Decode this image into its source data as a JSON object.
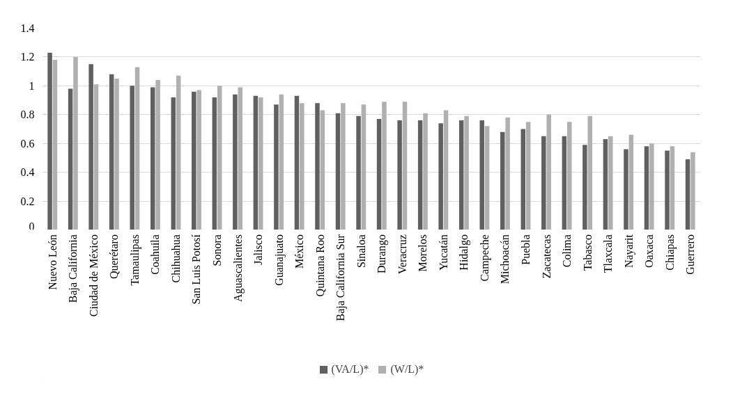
{
  "chart_data": {
    "type": "bar",
    "categories": [
      "Nuevo León",
      "Baja California",
      "Ciudad de México",
      "Querétaro",
      "Tamaulipas",
      "Coahuila",
      "Chihuahua",
      "San Luis Potosí",
      "Sonora",
      "Aguascalientes",
      "Jalisco",
      "Guanajuato",
      "México",
      "Quintana Roo",
      "Baja California Sur",
      "Sinaloa",
      "Durango",
      "Veracruz",
      "Morelos",
      "Yucatán",
      "Hidalgo",
      "Campeche",
      "Michoacán",
      "Puebla",
      "Zacatecas",
      "Colima",
      "Tabasco",
      "Tlaxcala",
      "Nayarit",
      "Oaxaca",
      "Chiapas",
      "Guerrero"
    ],
    "series": [
      {
        "name": "(VA/L)*",
        "color": "#606060",
        "values": [
          1.23,
          0.98,
          1.15,
          1.08,
          1.0,
          0.99,
          0.92,
          0.96,
          0.92,
          0.94,
          0.93,
          0.87,
          0.93,
          0.88,
          0.81,
          0.79,
          0.77,
          0.76,
          0.76,
          0.74,
          0.76,
          0.76,
          0.68,
          0.7,
          0.65,
          0.65,
          0.59,
          0.63,
          0.56,
          0.58,
          0.55,
          0.49
        ]
      },
      {
        "name": "(W/L)*",
        "color": "#b0b0b0",
        "values": [
          1.18,
          1.2,
          1.01,
          1.05,
          1.13,
          1.04,
          1.07,
          0.97,
          1.0,
          0.99,
          0.92,
          0.94,
          0.88,
          0.83,
          0.88,
          0.87,
          0.89,
          0.89,
          0.81,
          0.83,
          0.79,
          0.72,
          0.78,
          0.75,
          0.8,
          0.75,
          0.79,
          0.65,
          0.66,
          0.6,
          0.58,
          0.54
        ]
      }
    ],
    "ylim": [
      0,
      1.4
    ],
    "yticks": [
      0,
      {
        "value": 0.2,
        "label": "0.2"
      },
      {
        "value": 0.4,
        "label": "0.4"
      },
      {
        "value": 0.6,
        "label": "0.6"
      },
      {
        "value": 0.8,
        "label": "0.8"
      },
      1,
      {
        "value": 1.2,
        "label": "1.2"
      },
      {
        "value": 1.4,
        "label": "1.4"
      }
    ],
    "grid": "y",
    "legend": "bottom"
  }
}
